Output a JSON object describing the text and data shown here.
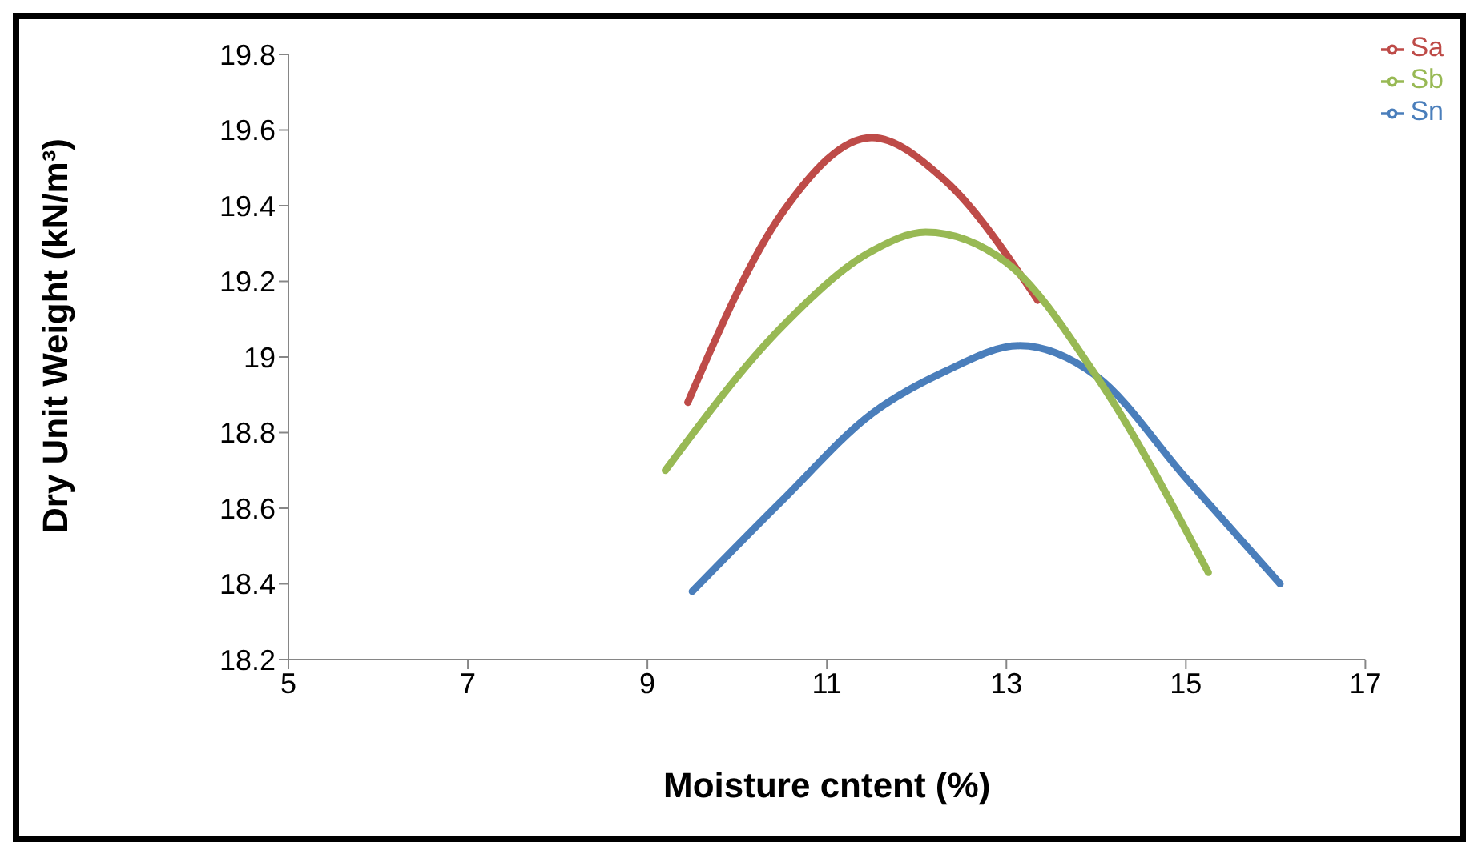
{
  "chart_data": {
    "type": "line",
    "xlabel": "Moisture cntent (%)",
    "ylabel": "Dry Unit Weight (kN/m³)",
    "xlim": [
      5,
      17
    ],
    "xticks": [
      5,
      7,
      9,
      11,
      13,
      15,
      17
    ],
    "ylim": [
      18.2,
      19.8
    ],
    "yticks": [
      18.2,
      18.4,
      18.6,
      18.8,
      19,
      19.2,
      19.4,
      19.6,
      19.8
    ],
    "grid": false,
    "legend": "top right",
    "marker": "none",
    "line_style": "solid",
    "series": [
      {
        "name": "Sn",
        "color": "#4a7ebb",
        "x": [
          9.5,
          10.5,
          11.5,
          12.3,
          13.15,
          14,
          15,
          16.05
        ],
        "values": [
          18.38,
          18.62,
          18.85,
          18.96,
          19.03,
          18.95,
          18.68,
          18.4
        ]
      },
      {
        "name": "Sa",
        "color": "#be4b48",
        "x": [
          9.45,
          10.5,
          11.5,
          12.3,
          13.35
        ],
        "values": [
          18.88,
          19.38,
          19.58,
          19.47,
          19.15
        ]
      },
      {
        "name": "Sb",
        "color": "#98b954",
        "x": [
          9.2,
          10.5,
          11.5,
          12.1,
          13,
          14,
          15.25
        ],
        "values": [
          18.7,
          19.08,
          19.28,
          19.33,
          19.25,
          18.95,
          18.43
        ]
      }
    ]
  }
}
